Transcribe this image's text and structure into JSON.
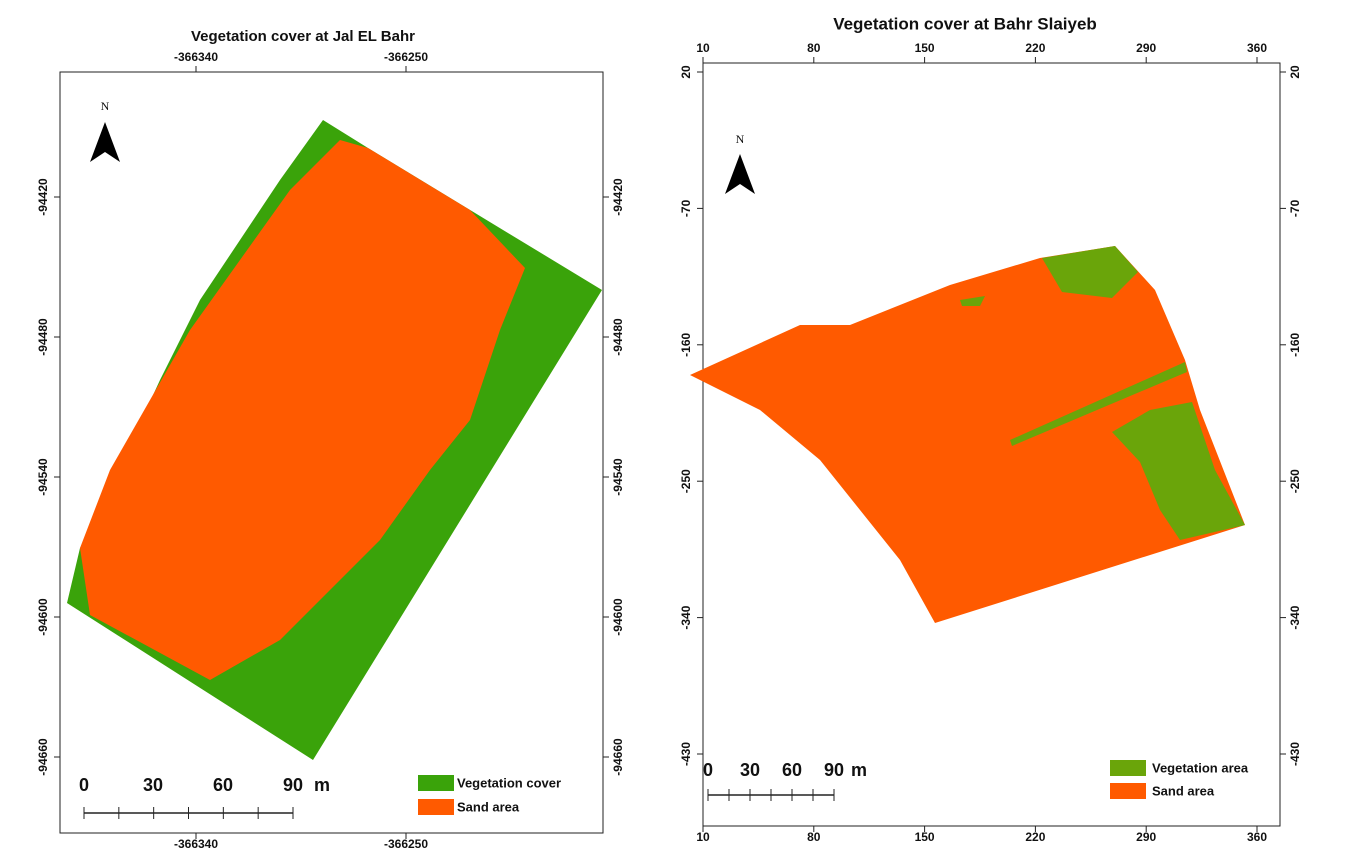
{
  "maps": [
    {
      "title": "Vegetation cover at Jal EL Bahr",
      "x_ticks": [
        -366340,
        -366250
      ],
      "y_ticks": [
        -94420,
        -94480,
        -94540,
        -94600,
        -94660
      ],
      "north_label": "N",
      "scale_labels": [
        0,
        30,
        60,
        90
      ],
      "scale_unit": "m",
      "legend": [
        {
          "label": "Vegetation cover",
          "color": "#3aa30a"
        },
        {
          "label": "Sand area",
          "color": "#ff5a00"
        }
      ]
    },
    {
      "title": "Vegetation cover at Bahr Slaiyeb",
      "x_ticks": [
        10,
        80,
        150,
        220,
        290,
        360
      ],
      "y_ticks": [
        20,
        -70,
        -160,
        -250,
        -340,
        -430
      ],
      "north_label": "N",
      "scale_labels": [
        0,
        30,
        60,
        90
      ],
      "scale_unit": "m",
      "legend": [
        {
          "label": "Vegetation area",
          "color": "#6aa50a"
        },
        {
          "label": "Sand area",
          "color": "#ff5a00"
        }
      ]
    }
  ]
}
